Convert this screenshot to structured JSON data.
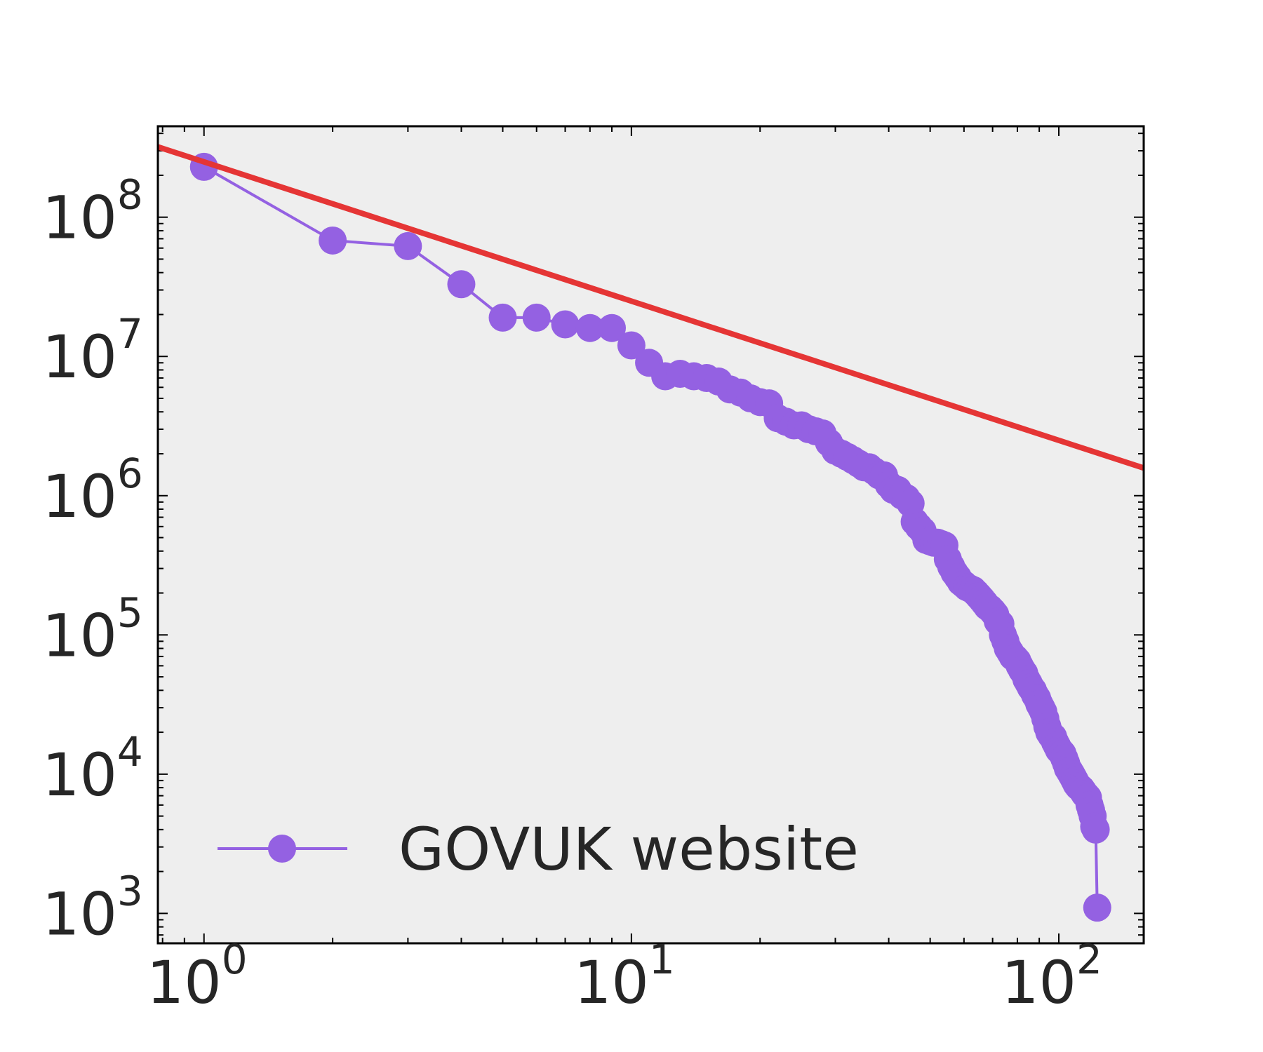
{
  "chart_data": {
    "type": "line",
    "title": "",
    "xlabel": "",
    "ylabel": "",
    "x_scale": "log",
    "y_scale": "log",
    "xlim": [
      0.78,
      158
    ],
    "ylim": [
      610,
      450000000
    ],
    "x_ticks": [
      {
        "value": 1,
        "base": "10",
        "exp": "0"
      },
      {
        "value": 10,
        "base": "10",
        "exp": "1"
      },
      {
        "value": 100,
        "base": "10",
        "exp": "2"
      }
    ],
    "y_ticks": [
      {
        "value": 1000,
        "base": "10",
        "exp": "3"
      },
      {
        "value": 10000,
        "base": "10",
        "exp": "4"
      },
      {
        "value": 100000,
        "base": "10",
        "exp": "5"
      },
      {
        "value": 1000000,
        "base": "10",
        "exp": "6"
      },
      {
        "value": 10000000,
        "base": "10",
        "exp": "7"
      },
      {
        "value": 100000000,
        "base": "10",
        "exp": "8"
      }
    ],
    "grid": false,
    "legend_position": "lower-left",
    "background_color": "#eeeeee",
    "series": [
      {
        "name": "GOVUK website",
        "color": "#9461e2",
        "marker": "circle",
        "x": [
          1,
          2,
          3,
          4,
          5,
          6,
          7,
          8,
          9,
          10,
          11,
          12,
          13,
          14,
          15,
          16,
          17,
          18,
          19,
          20,
          21,
          22,
          23,
          24,
          25,
          26,
          27,
          28,
          29,
          30,
          31,
          32,
          33,
          34,
          35,
          36,
          37,
          38,
          39,
          40,
          41,
          42,
          43,
          44,
          45,
          46,
          47,
          48,
          49,
          50,
          51,
          52,
          53,
          54,
          55,
          56,
          57,
          58,
          59,
          60,
          61,
          62,
          63,
          64,
          65,
          66,
          67,
          68,
          69,
          70,
          71,
          72,
          73,
          74,
          75,
          76,
          77,
          78,
          79,
          80,
          81,
          82,
          83,
          84,
          85,
          86,
          87,
          88,
          89,
          90,
          91,
          92,
          93,
          94,
          95,
          96,
          97,
          98,
          99,
          100,
          101,
          102,
          103,
          104,
          105,
          106,
          107,
          108,
          109,
          110,
          111,
          112,
          113,
          114,
          115,
          116,
          117,
          118,
          119,
          120,
          121,
          122,
          123
        ],
        "y": [
          230000000,
          68000000,
          62000000,
          33000000,
          19000000,
          19000000,
          17000000,
          16000000,
          16000000,
          12000000,
          9000000,
          7200000,
          7500000,
          7200000,
          7000000,
          6600000,
          5800000,
          5500000,
          5000000,
          4700000,
          4600000,
          3600000,
          3400000,
          3200000,
          3200000,
          3000000,
          2900000,
          2800000,
          2400000,
          2100000,
          2000000,
          1900000,
          1800000,
          1700000,
          1600000,
          1600000,
          1500000,
          1400000,
          1400000,
          1200000,
          1100000,
          1100000,
          1000000,
          960000,
          880000,
          650000,
          600000,
          560000,
          480000,
          470000,
          460000,
          460000,
          450000,
          440000,
          350000,
          310000,
          280000,
          260000,
          240000,
          230000,
          220000,
          215000,
          210000,
          200000,
          190000,
          180000,
          170000,
          160000,
          155000,
          148000,
          140000,
          125000,
          120000,
          100000,
          90000,
          80000,
          75000,
          70000,
          68000,
          65000,
          60000,
          56000,
          53000,
          48000,
          45000,
          42000,
          40000,
          37000,
          35000,
          32000,
          30000,
          28000,
          25000,
          22000,
          20000,
          19000,
          18500,
          17000,
          16000,
          15000,
          14500,
          14000,
          13000,
          12000,
          11000,
          10500,
          10000,
          9500,
          9000,
          8500,
          8200,
          8000,
          7800,
          7500,
          7200,
          7000,
          6800,
          6000,
          5500,
          5000,
          4200,
          4000,
          1100
        ]
      },
      {
        "name": "",
        "color": "#e53535",
        "marker": "none",
        "x": [
          0.78,
          158
        ],
        "y": [
          320000000,
          1580000
        ]
      }
    ]
  }
}
